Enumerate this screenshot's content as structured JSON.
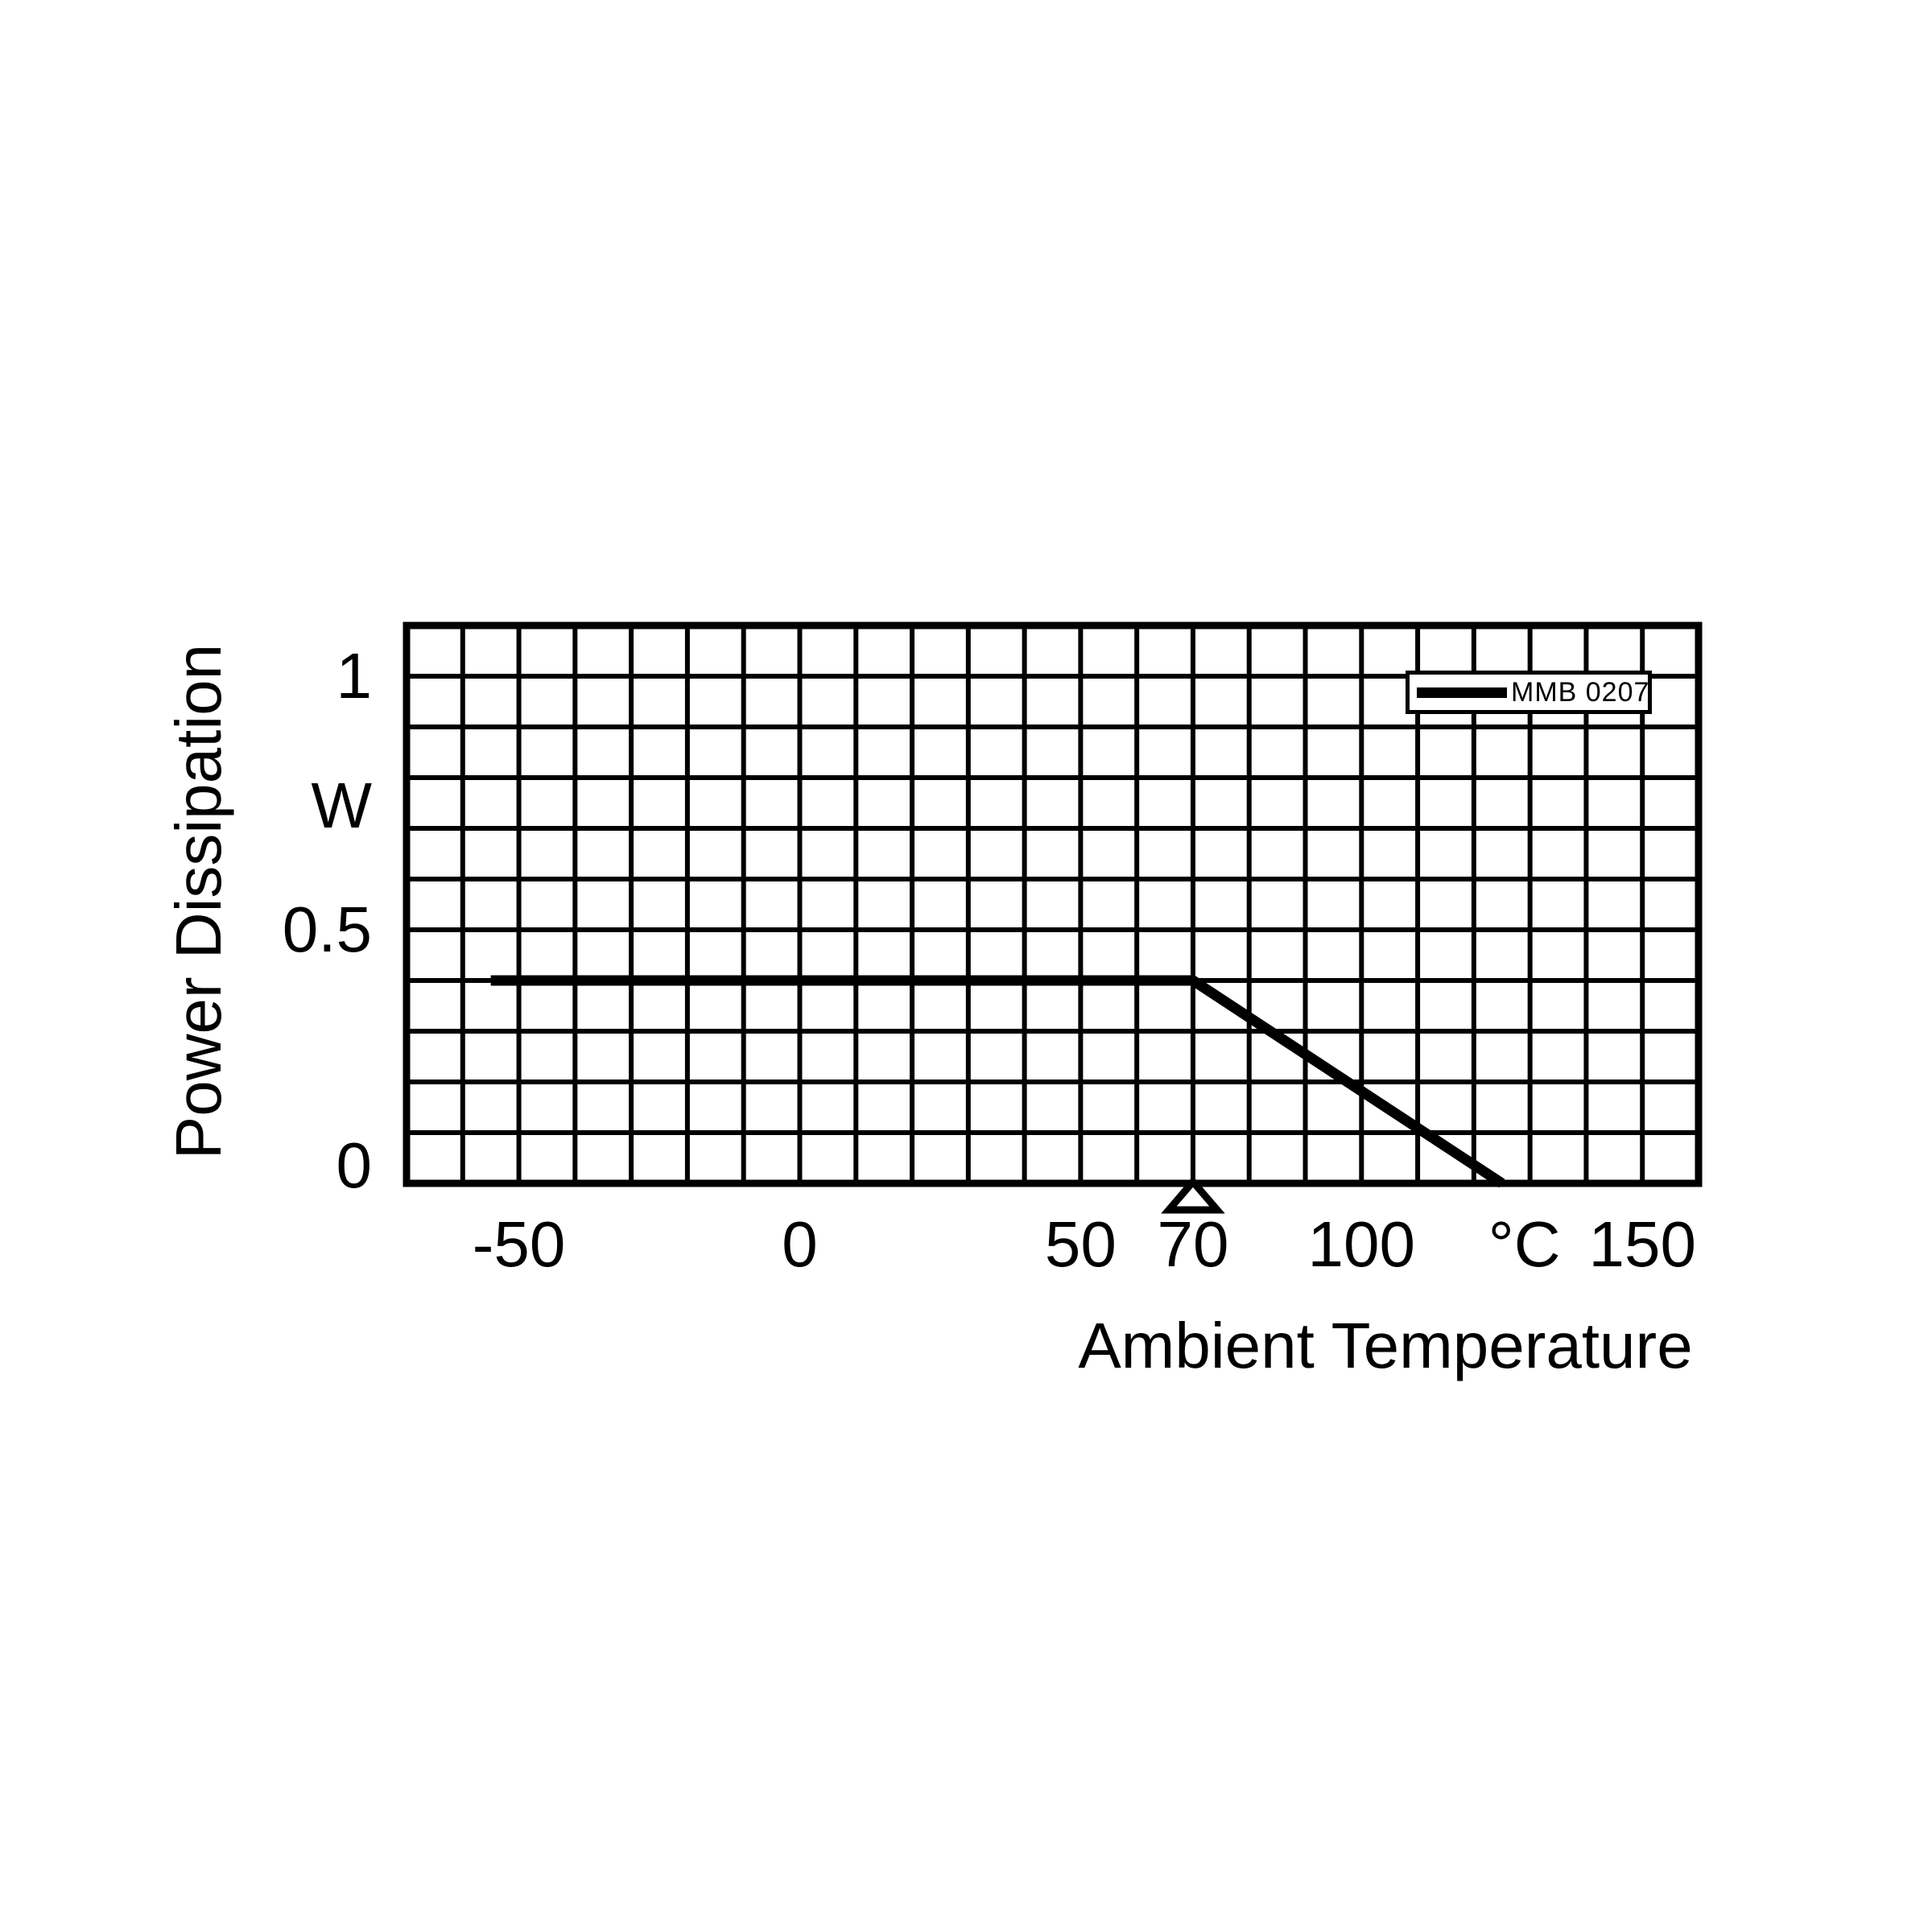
{
  "figure": {
    "background_color": "#ffffff",
    "ink_color": "#000000"
  },
  "legend": {
    "series_label": "MMB 0207",
    "position": "top-right"
  },
  "axes_titles": {
    "x": "Ambient Temperature",
    "y": "Power Dissipation"
  },
  "chart_data": {
    "type": "line",
    "title": "",
    "xlabel": "Ambient Temperature",
    "x_unit": "°C",
    "ylabel": "Power Dissipation",
    "y_unit": "W",
    "xlim": [
      -70,
      160
    ],
    "ylim": [
      0,
      1.1
    ],
    "x_grid_step": 10,
    "y_grid_step": 0.1,
    "grid": true,
    "legend_position": "top-right",
    "x_ticks": [
      {
        "label": "-50",
        "value": -50,
        "is_unit": false
      },
      {
        "label": "0",
        "value": 0,
        "is_unit": false
      },
      {
        "label": "50",
        "value": 50,
        "is_unit": false
      },
      {
        "label": "70",
        "value": 70,
        "is_unit": false
      },
      {
        "label": "100",
        "value": 100,
        "is_unit": false
      },
      {
        "label": "°C",
        "value": 129,
        "is_unit": true
      },
      {
        "label": "150",
        "value": 150,
        "is_unit": false
      }
    ],
    "y_ticks": [
      {
        "label": "1",
        "value": 1,
        "is_unit": false
      },
      {
        "label": "W",
        "value": 0.745,
        "is_unit": true
      },
      {
        "label": "0.5",
        "value": 0.5,
        "is_unit": false
      },
      {
        "label": "0",
        "value": 0.035,
        "is_unit": false
      }
    ],
    "series": [
      {
        "name": "MMB 0207",
        "points": [
          [
            -55,
            0.4
          ],
          [
            70,
            0.4
          ],
          [
            125,
            0
          ]
        ]
      }
    ],
    "annotations": [
      {
        "type": "open-triangle-marker",
        "x": 70,
        "y": 0,
        "meaning": "rated ambient temperature 70 °C"
      }
    ]
  }
}
